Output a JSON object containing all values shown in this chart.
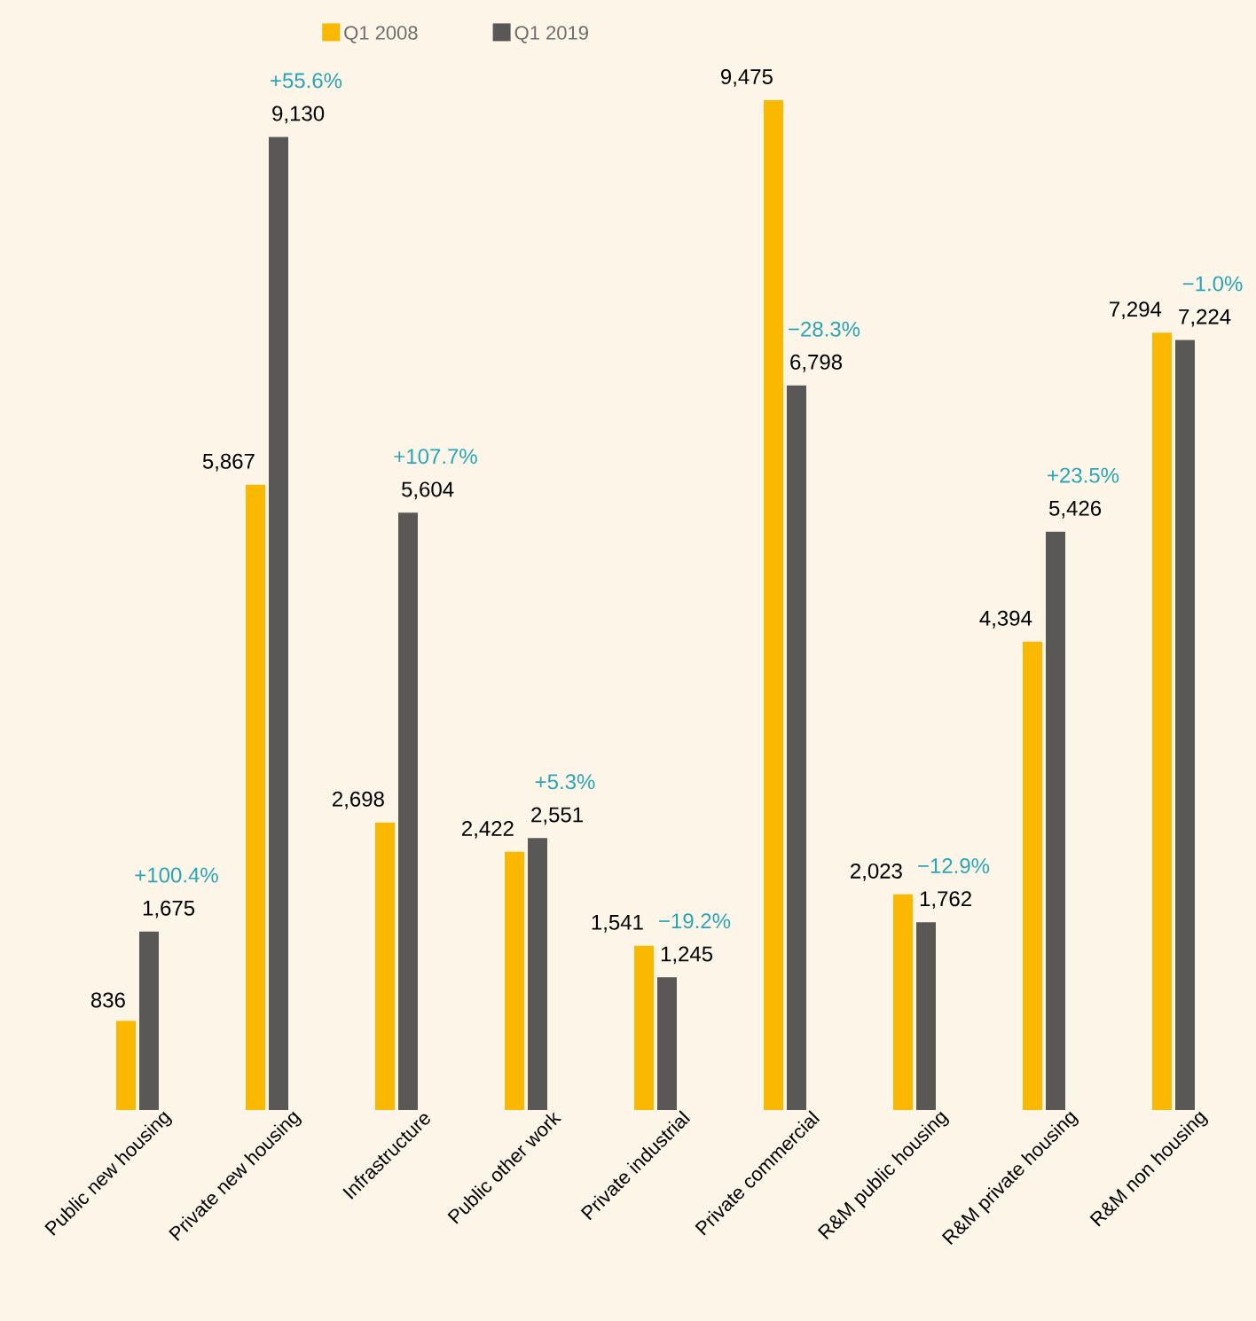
{
  "chart_data": {
    "type": "bar",
    "categories": [
      "Public new housing",
      "Private new housing",
      "Infrastructure",
      "Public other work",
      "Private industrial",
      "Private commercial",
      "R&M public housing",
      "R&M private housing",
      "R&M non housing"
    ],
    "series": [
      {
        "name": "Q1 2008",
        "color": "#fbb800",
        "values": [
          836,
          5867,
          2698,
          2422,
          1541,
          9475,
          2023,
          4394,
          7294
        ],
        "value_labels": [
          "836",
          "5,867",
          "2,698",
          "2,422",
          "1,541",
          "9,475",
          "2,023",
          "4,394",
          "7,294"
        ]
      },
      {
        "name": "Q1 2019",
        "color": "#595856",
        "values": [
          1675,
          9130,
          5604,
          2551,
          1245,
          6798,
          1762,
          5426,
          7224
        ],
        "value_labels": [
          "1,675",
          "9,130",
          "5,604",
          "2,551",
          "1,245",
          "6,798",
          "1,762",
          "5,426",
          "7,224"
        ]
      }
    ],
    "legend": "top",
    "tick_labels": "x",
    "annotations": [
      "+100.4%",
      "+55.6%",
      "+107.7%",
      "+5.3%",
      "−19.2%",
      "−28.3%",
      "−12.9%",
      "+23.5%",
      "−1.0%"
    ]
  }
}
